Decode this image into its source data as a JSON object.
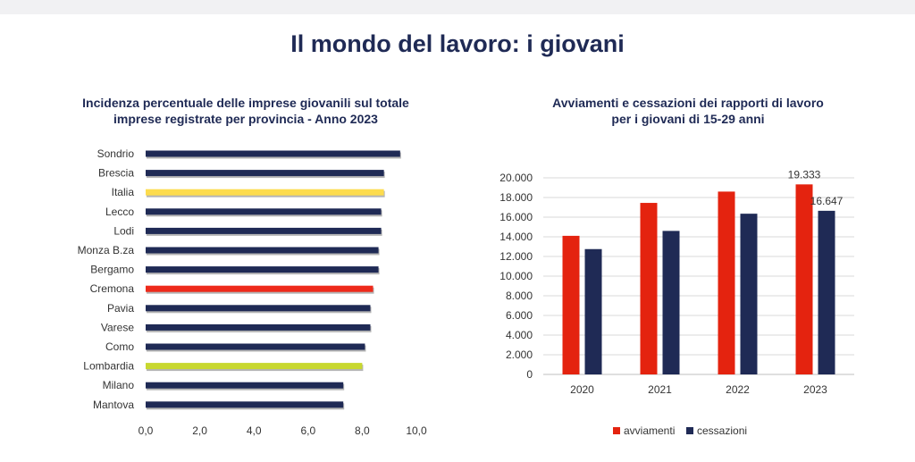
{
  "page": {
    "title": "Il mondo del lavoro: i giovani"
  },
  "chart_data": [
    {
      "type": "bar",
      "orientation": "horizontal",
      "title": "Incidenza percentuale delle imprese giovanili sul totale\nimprese registrate per provincia - Anno 2023",
      "categories": [
        "Sondrio",
        "Brescia",
        "Italia",
        "Lecco",
        "Lodi",
        "Monza B.za",
        "Bergamo",
        "Cremona",
        "Pavia",
        "Varese",
        "Como",
        "Lombardia",
        "Milano",
        "Mantova"
      ],
      "values": [
        9.4,
        8.8,
        8.8,
        8.7,
        8.7,
        8.6,
        8.6,
        8.4,
        8.3,
        8.3,
        8.1,
        8.0,
        7.3,
        7.3
      ],
      "bar_colors": [
        "#1f2a55",
        "#1f2a55",
        "#fddc4e",
        "#1f2a55",
        "#1f2a55",
        "#1f2a55",
        "#1f2a55",
        "#ee2a1b",
        "#1f2a55",
        "#1f2a55",
        "#1f2a55",
        "#c8d82f",
        "#1f2a55",
        "#1f2a55"
      ],
      "xlim": [
        0,
        10
      ],
      "xticks": [
        "0,0",
        "2,0",
        "4,0",
        "6,0",
        "8,0",
        "10,0"
      ],
      "xlabel": "",
      "ylabel": ""
    },
    {
      "type": "bar",
      "orientation": "vertical",
      "title": "Avviamenti e cessazioni dei rapporti di lavoro\nper i giovani di 15-29 anni",
      "categories": [
        "2020",
        "2021",
        "2022",
        "2023"
      ],
      "series": [
        {
          "name": "avviamenti",
          "color": "#e4230f",
          "values": [
            14100,
            17450,
            18600,
            19333
          ]
        },
        {
          "name": "cessazioni",
          "color": "#1f2a55",
          "values": [
            12750,
            14600,
            16350,
            16647
          ]
        }
      ],
      "data_labels": [
        {
          "series": "avviamenti",
          "category": "2023",
          "text": "19.333"
        },
        {
          "series": "cessazioni",
          "category": "2023",
          "text": "16.647"
        }
      ],
      "ylim": [
        0,
        20000
      ],
      "yticks": [
        "0",
        "2.000",
        "4.000",
        "6.000",
        "8.000",
        "10.000",
        "12.000",
        "14.000",
        "16.000",
        "18.000",
        "20.000"
      ],
      "legend": "bottom",
      "xlabel": "",
      "ylabel": ""
    }
  ]
}
